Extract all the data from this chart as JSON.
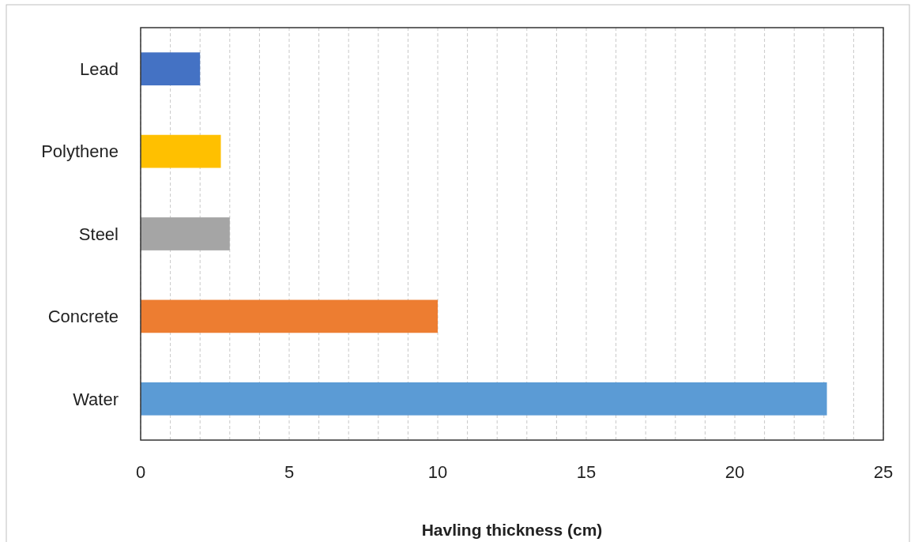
{
  "chart_data": {
    "type": "bar",
    "orientation": "horizontal",
    "xlabel": "Havling thickness (cm)",
    "categories": [
      "Lead",
      "Polythene",
      "Steel",
      "Concrete",
      "Water"
    ],
    "values": [
      2.0,
      2.7,
      3.0,
      10.0,
      23.1
    ],
    "colors": [
      "#4472c4",
      "#ffc000",
      "#a5a5a5",
      "#ed7d31",
      "#5b9bd5"
    ],
    "xlim": [
      0,
      25
    ],
    "xticks": [
      0,
      {
        "value": 1,
        "label": null
      },
      {
        "value": 2,
        "label": null
      },
      {
        "value": 3,
        "label": null
      },
      {
        "value": 4,
        "label": null
      },
      5,
      {
        "value": 6,
        "label": null
      },
      {
        "value": 7,
        "label": null
      },
      {
        "value": 8,
        "label": null
      },
      {
        "value": 9,
        "label": null
      },
      10,
      {
        "value": 11,
        "label": null
      },
      {
        "value": 12,
        "label": null
      },
      {
        "value": 13,
        "label": null
      },
      {
        "value": 14,
        "label": null
      },
      15,
      {
        "value": 16,
        "label": null
      },
      {
        "value": 17,
        "label": null
      },
      {
        "value": 18,
        "label": null
      },
      {
        "value": 19,
        "label": null
      },
      20,
      {
        "value": 21,
        "label": null
      },
      {
        "value": 22,
        "label": null
      },
      {
        "value": 23,
        "label": null
      },
      {
        "value": 24,
        "label": null
      },
      25
    ],
    "grid": "x"
  }
}
